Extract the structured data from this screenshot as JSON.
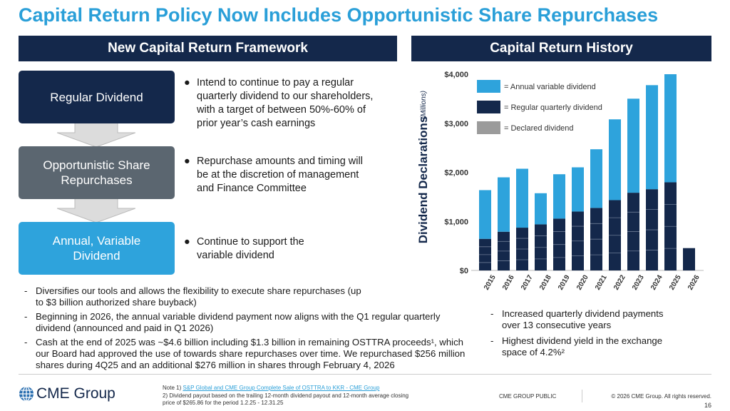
{
  "title": "Capital Return Policy Now Includes Opportunistic Share Repurchases",
  "left": {
    "header": "New Capital Return Framework",
    "boxes": [
      {
        "label": "Regular Dividend",
        "color": "#14284b"
      },
      {
        "label": "Opportunistic Share Repurchases",
        "color": "#5b6670"
      },
      {
        "label": "Annual, Variable Dividend",
        "color": "#2ea3dc"
      }
    ],
    "bullets": [
      "Intend to continue to pay a regular quarterly dividend to our shareholders, with a target of between 50%-60% of prior year’s cash earnings",
      "Repurchase amounts and timing will be at the discretion of management and Finance Committee",
      "Continue to support the variable dividend"
    ],
    "notes": [
      "Diversifies our tools and allows the flexibility to execute share repurchases (up to $3 billion authorized share buyback)",
      "Beginning in 2026, the annual variable dividend payment now aligns with the Q1 regular quarterly dividend (announced and paid in Q1 2026)",
      "Cash at the end of 2025 was ~$4.6 billion including $1.3 billion in remaining OSTTRA proceeds¹, which our Board had approved the use of towards share repurchases over time. We repurchased $256 million shares during 4Q25 and an additional $276 million in shares through February 4, 2026"
    ]
  },
  "right": {
    "header": "Capital Return History",
    "notes": [
      "Increased quarterly dividend payments over 13 consecutive years",
      "Highest dividend yield in the exchange space of 4.2%²"
    ]
  },
  "chart_data": {
    "type": "bar",
    "stacked": true,
    "ylabel": "Dividend Declarations",
    "ylabel_unit": "(Millions)",
    "ylim": [
      0,
      4000
    ],
    "yticks": [
      "$0",
      "$1,000",
      "$2,000",
      "$3,000",
      "$4,000"
    ],
    "categories": [
      "2015",
      "2016",
      "2017",
      "2018",
      "2019",
      "2020",
      "2021",
      "2022",
      "2023",
      "2024",
      "2025",
      "2026"
    ],
    "series": [
      {
        "name": "= Regular quarterly dividend",
        "color": "#14284b",
        "values": [
          644,
          789,
          872,
          939,
          1056,
          1201,
          1274,
          1433,
          1584,
          1656,
          1797,
          455
        ]
      },
      {
        "name": "= Annual variable dividend",
        "color": "#2ea3dc",
        "values": [
          993,
          1109,
          1201,
          635,
          905,
          901,
          1196,
          1647,
          1917,
          2121,
          2203,
          0
        ]
      }
    ],
    "legend_extra": {
      "name": "= Declared dividend",
      "color": "#9b9b9b"
    },
    "legend": "top-left"
  },
  "footer": {
    "logo": "CME Group",
    "note1_prefix": "Note 1)",
    "note1_link": "S&P Global and CME Group Complete Sale of OSTTRA to KKR - CME Group",
    "note2": "2) Dividend payout based on the trailing 12-month dividend payout and 12-month average closing price of $265.86 for the period 1.2.25 - 12.31.25",
    "classification": "CME GROUP PUBLIC",
    "copyright": "© 2026 CME Group. All rights reserved.",
    "page": "16"
  }
}
